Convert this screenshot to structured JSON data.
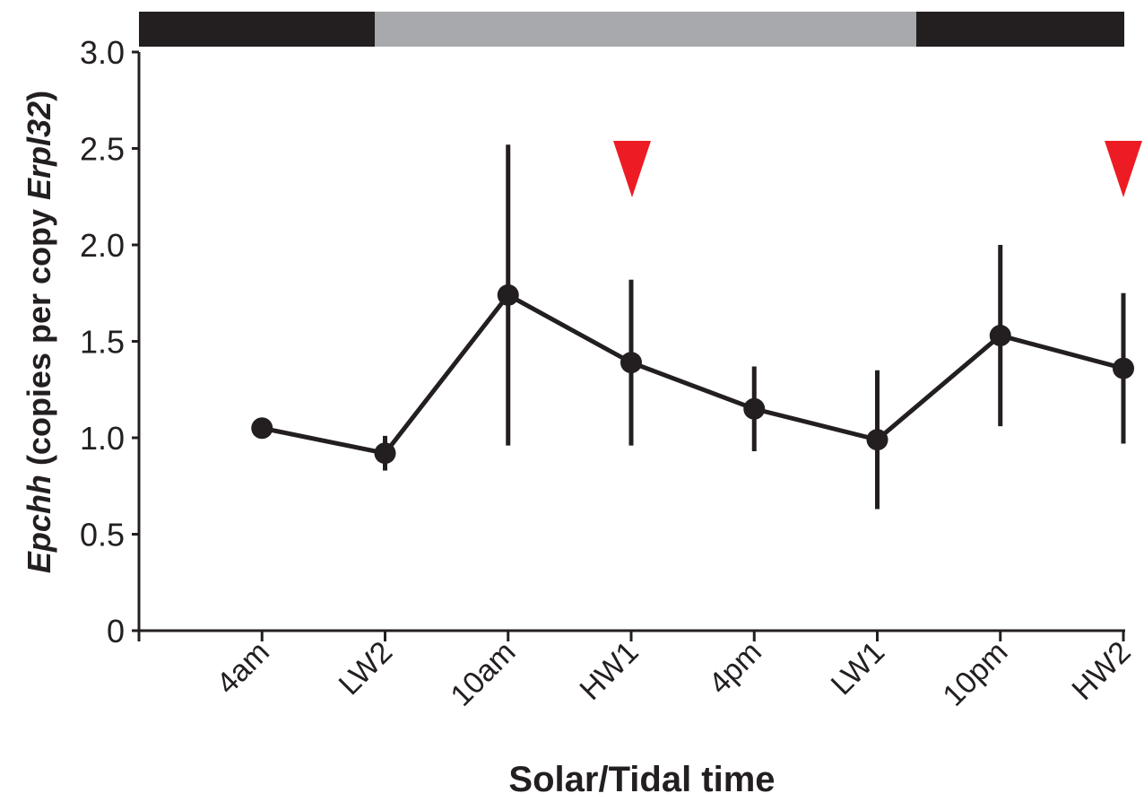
{
  "chart_data": {
    "type": "line",
    "title": "Solar/Tidal time",
    "y_label_parts": [
      "Epchh",
      " (copies per copy ",
      "Erpl32",
      ")"
    ],
    "categories": [
      null,
      "4am",
      "LW2",
      "10am",
      "HW1",
      "4pm",
      "LW1",
      "10pm",
      "HW2"
    ],
    "series": [
      {
        "color": "#231f20",
        "values": [
          null,
          1.05,
          0.92,
          1.74,
          1.39,
          1.15,
          0.99,
          1.53,
          1.36
        ],
        "errors": [
          null,
          null,
          0.09,
          0.78,
          0.43,
          0.22,
          0.36,
          0.47,
          0.39
        ]
      }
    ],
    "ylim": [
      0,
      3.0
    ],
    "yticks": [
      0,
      0.5,
      {
        "value": 1.0,
        "label": "1.0"
      },
      1.5,
      {
        "value": 2.0,
        "label": "2.0"
      },
      2.5,
      {
        "value": 3.0,
        "label": "3.0"
      }
    ],
    "grid": false
  }
}
